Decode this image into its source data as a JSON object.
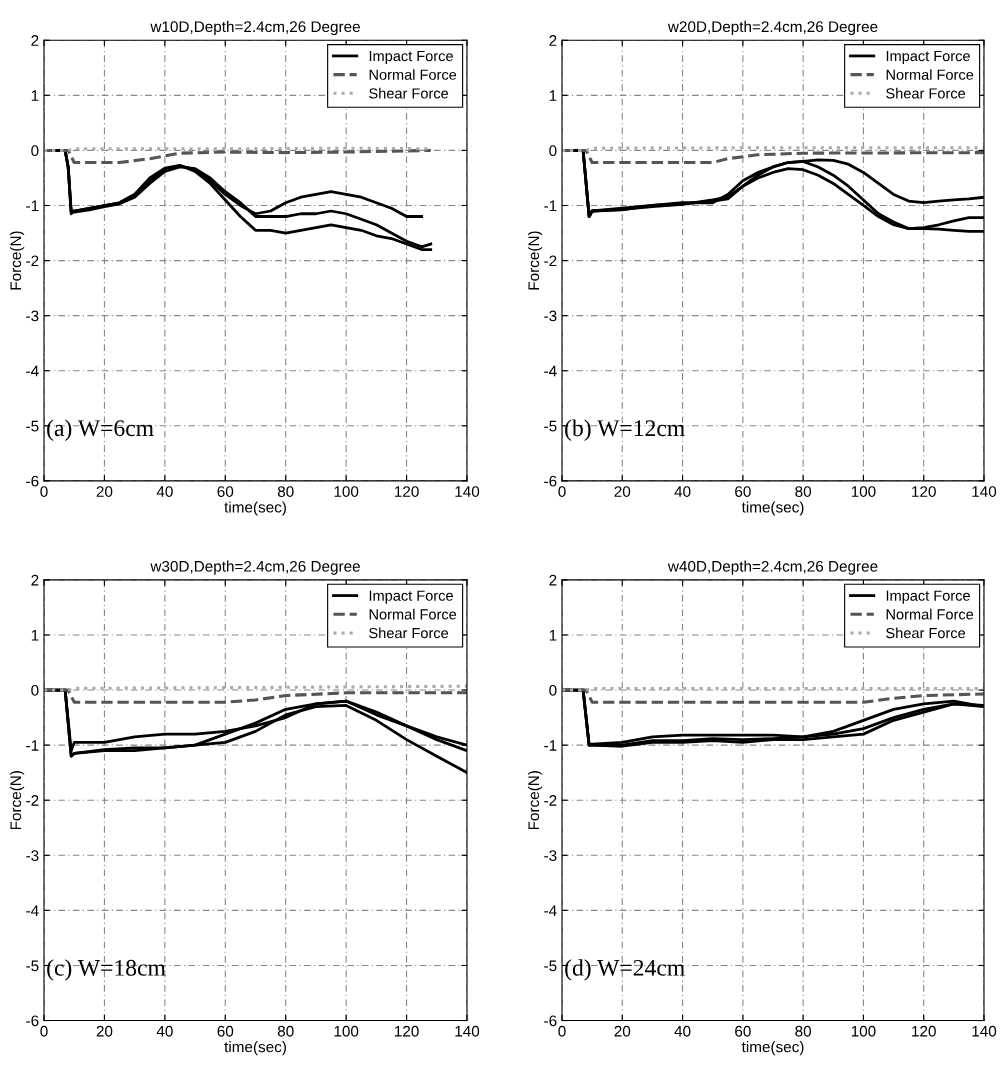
{
  "chart_data": [
    {
      "type": "line",
      "title": "w10D,Depth=2.4cm,26 Degree",
      "xlabel": "time(sec)",
      "ylabel": "Force(N)",
      "xlim": [
        0,
        140
      ],
      "ylim": [
        -6,
        2
      ],
      "xticks": [
        0,
        20,
        40,
        60,
        80,
        100,
        120,
        140
      ],
      "yticks": [
        -6,
        -5,
        -4,
        -3,
        -2,
        -1,
        0,
        1,
        2
      ],
      "grid": true,
      "legend": "top right",
      "annotations": [
        "(a) W=6cm"
      ],
      "series": [
        {
          "name": "Impact Force",
          "color": "#000000",
          "line_style": "solid",
          "x": [
            0,
            7,
            8,
            9,
            10,
            15,
            20,
            25,
            30,
            35,
            40,
            45,
            50,
            55,
            60,
            65,
            70,
            75,
            80,
            85,
            90,
            95,
            100,
            105,
            110,
            115,
            120,
            125
          ],
          "values": [
            0,
            0,
            -0.3,
            -1.1,
            -1.1,
            -1.05,
            -1.0,
            -0.95,
            -0.8,
            -0.55,
            -0.35,
            -0.28,
            -0.35,
            -0.55,
            -0.8,
            -1.0,
            -1.15,
            -1.1,
            -0.95,
            -0.85,
            -0.8,
            -0.75,
            -0.8,
            -0.85,
            -0.95,
            -1.05,
            -1.2,
            -1.2
          ]
        },
        {
          "color": "#000000",
          "line_style": "solid",
          "x": [
            0,
            7,
            8,
            9,
            10,
            15,
            20,
            25,
            30,
            35,
            40,
            45,
            50,
            55,
            60,
            65,
            70,
            75,
            80,
            85,
            90,
            95,
            100,
            105,
            110,
            115,
            120,
            125,
            128
          ],
          "values": [
            0,
            0,
            -0.3,
            -1.12,
            -1.12,
            -1.08,
            -1.02,
            -0.97,
            -0.85,
            -0.6,
            -0.38,
            -0.3,
            -0.33,
            -0.5,
            -0.75,
            -0.95,
            -1.2,
            -1.2,
            -1.2,
            -1.15,
            -1.15,
            -1.1,
            -1.15,
            -1.25,
            -1.35,
            -1.5,
            -1.65,
            -1.75,
            -1.7
          ]
        },
        {
          "color": "#000000",
          "line_style": "solid",
          "x": [
            0,
            7,
            8,
            9,
            10,
            15,
            20,
            25,
            30,
            35,
            40,
            45,
            50,
            55,
            60,
            65,
            70,
            75,
            80,
            85,
            90,
            95,
            100,
            105,
            110,
            115,
            120,
            125,
            128
          ],
          "values": [
            0,
            0,
            -0.3,
            -1.15,
            -1.1,
            -1.05,
            -1.0,
            -0.95,
            -0.8,
            -0.5,
            -0.32,
            -0.27,
            -0.38,
            -0.6,
            -0.9,
            -1.2,
            -1.45,
            -1.45,
            -1.5,
            -1.45,
            -1.4,
            -1.35,
            -1.4,
            -1.45,
            -1.55,
            -1.6,
            -1.7,
            -1.8,
            -1.8
          ]
        },
        {
          "name": "Normal Force",
          "color": "#555555",
          "line_style": "dashed",
          "x": [
            0,
            8,
            10,
            25,
            35,
            45,
            60,
            80,
            100,
            128
          ],
          "values": [
            0,
            0,
            -0.22,
            -0.22,
            -0.15,
            -0.05,
            -0.03,
            -0.04,
            -0.03,
            0
          ]
        },
        {
          "name": "Shear Force",
          "color": "#aaaaaa",
          "line_style": "dotted",
          "x": [
            0,
            8,
            10,
            60,
            100,
            128
          ],
          "values": [
            0,
            0,
            0.03,
            0.03,
            0.04,
            0.03
          ]
        }
      ]
    },
    {
      "type": "line",
      "title": "w20D,Depth=2.4cm,26 Degree",
      "xlabel": "time(sec)",
      "ylabel": "Force(N)",
      "xlim": [
        0,
        140
      ],
      "ylim": [
        -6,
        2
      ],
      "xticks": [
        0,
        20,
        40,
        60,
        80,
        100,
        120,
        140
      ],
      "yticks": [
        -6,
        -5,
        -4,
        -3,
        -2,
        -1,
        0,
        1,
        2
      ],
      "grid": true,
      "legend": "top right",
      "annotations": [
        "(b) W=12cm"
      ],
      "series": [
        {
          "name": "Impact Force",
          "color": "#000000",
          "line_style": "solid",
          "x": [
            0,
            7,
            9,
            10,
            20,
            30,
            40,
            50,
            55,
            60,
            65,
            70,
            75,
            80,
            85,
            90,
            95,
            100,
            105,
            110,
            115,
            120,
            125,
            130,
            135,
            140
          ],
          "values": [
            0,
            0,
            -1.2,
            -1.1,
            -1.07,
            -1.02,
            -0.98,
            -0.9,
            -0.85,
            -0.65,
            -0.45,
            -0.3,
            -0.22,
            -0.2,
            -0.17,
            -0.18,
            -0.25,
            -0.4,
            -0.6,
            -0.8,
            -0.92,
            -0.95,
            -0.92,
            -0.9,
            -0.88,
            -0.85
          ]
        },
        {
          "color": "#000000",
          "line_style": "solid",
          "x": [
            0,
            7,
            9,
            10,
            20,
            30,
            40,
            50,
            55,
            60,
            65,
            70,
            75,
            80,
            85,
            90,
            95,
            100,
            105,
            110,
            115,
            120,
            125,
            130,
            135,
            140
          ],
          "values": [
            0,
            0,
            -1.2,
            -1.1,
            -1.05,
            -1.0,
            -0.95,
            -0.95,
            -0.8,
            -0.55,
            -0.4,
            -0.3,
            -0.22,
            -0.2,
            -0.3,
            -0.45,
            -0.65,
            -0.9,
            -1.15,
            -1.3,
            -1.42,
            -1.4,
            -1.35,
            -1.28,
            -1.22,
            -1.22
          ]
        },
        {
          "color": "#000000",
          "line_style": "solid",
          "x": [
            0,
            7,
            9,
            10,
            20,
            30,
            40,
            50,
            55,
            60,
            65,
            70,
            75,
            80,
            85,
            90,
            95,
            100,
            105,
            110,
            115,
            120,
            125,
            130,
            135,
            140
          ],
          "values": [
            0,
            0,
            -1.2,
            -1.1,
            -1.08,
            -1.0,
            -0.97,
            -0.92,
            -0.88,
            -0.65,
            -0.5,
            -0.4,
            -0.33,
            -0.35,
            -0.45,
            -0.6,
            -0.8,
            -1.0,
            -1.2,
            -1.35,
            -1.42,
            -1.42,
            -1.43,
            -1.45,
            -1.47,
            -1.47
          ]
        },
        {
          "name": "Normal Force",
          "color": "#555555",
          "line_style": "dashed",
          "x": [
            0,
            8,
            10,
            50,
            55,
            65,
            80,
            140
          ],
          "values": [
            0,
            0,
            -0.22,
            -0.22,
            -0.15,
            -0.08,
            -0.05,
            -0.04
          ]
        },
        {
          "name": "Shear Force",
          "color": "#aaaaaa",
          "line_style": "dotted",
          "x": [
            0,
            8,
            10,
            80,
            140
          ],
          "values": [
            0,
            0,
            0.04,
            0.05,
            0.05
          ]
        }
      ]
    },
    {
      "type": "line",
      "title": "w30D,Depth=2.4cm,26 Degree",
      "xlabel": "time(sec)",
      "ylabel": "Force(N)",
      "xlim": [
        0,
        140
      ],
      "ylim": [
        -6,
        2
      ],
      "xticks": [
        0,
        20,
        40,
        60,
        80,
        100,
        120,
        140
      ],
      "yticks": [
        -6,
        -5,
        -4,
        -3,
        -2,
        -1,
        0,
        1,
        2
      ],
      "grid": true,
      "legend": "top right",
      "annotations": [
        "(c) W=18cm"
      ],
      "series": [
        {
          "name": "Impact Force",
          "color": "#000000",
          "line_style": "solid",
          "x": [
            0,
            7,
            9,
            10,
            20,
            30,
            40,
            50,
            60,
            70,
            80,
            90,
            100,
            110,
            120,
            130,
            140
          ],
          "values": [
            0,
            0,
            -1.1,
            -0.95,
            -0.95,
            -0.85,
            -0.8,
            -0.8,
            -0.75,
            -0.65,
            -0.5,
            -0.25,
            -0.2,
            -0.45,
            -0.65,
            -0.85,
            -1.0
          ]
        },
        {
          "color": "#000000",
          "line_style": "solid",
          "x": [
            0,
            7,
            9,
            10,
            20,
            30,
            40,
            50,
            60,
            70,
            80,
            90,
            100,
            110,
            120,
            130,
            140
          ],
          "values": [
            0,
            0,
            -1.2,
            -1.15,
            -1.1,
            -1.1,
            -1.05,
            -1.0,
            -0.8,
            -0.6,
            -0.35,
            -0.25,
            -0.2,
            -0.4,
            -0.65,
            -0.9,
            -1.1
          ]
        },
        {
          "color": "#000000",
          "line_style": "solid",
          "x": [
            0,
            7,
            9,
            10,
            20,
            30,
            40,
            50,
            60,
            70,
            75,
            80,
            90,
            100,
            110,
            120,
            130,
            140
          ],
          "values": [
            0,
            0,
            -1.2,
            -1.15,
            -1.08,
            -1.05,
            -1.05,
            -1.0,
            -0.95,
            -0.75,
            -0.6,
            -0.45,
            -0.3,
            -0.28,
            -0.55,
            -0.9,
            -1.2,
            -1.5
          ]
        },
        {
          "name": "Normal Force",
          "color": "#555555",
          "line_style": "dashed",
          "x": [
            0,
            8,
            10,
            60,
            70,
            80,
            100,
            140
          ],
          "values": [
            0,
            0,
            -0.22,
            -0.22,
            -0.18,
            -0.1,
            -0.05,
            -0.05
          ]
        },
        {
          "name": "Shear Force",
          "color": "#aaaaaa",
          "line_style": "dotted",
          "x": [
            0,
            8,
            10,
            80,
            140
          ],
          "values": [
            0,
            0,
            0.03,
            0.05,
            0.07
          ]
        }
      ]
    },
    {
      "type": "line",
      "title": "w40D,Depth=2.4cm,26 Degree",
      "xlabel": "time(sec)",
      "ylabel": "Force(N)",
      "xlim": [
        0,
        140
      ],
      "ylim": [
        -6,
        2
      ],
      "xticks": [
        0,
        20,
        40,
        60,
        80,
        100,
        120,
        140
      ],
      "yticks": [
        -6,
        -5,
        -4,
        -3,
        -2,
        -1,
        0,
        1,
        2
      ],
      "grid": true,
      "legend": "top right",
      "annotations": [
        "(d) W=24cm"
      ],
      "series": [
        {
          "name": "Impact Force",
          "color": "#000000",
          "line_style": "solid",
          "x": [
            0,
            7,
            9,
            10,
            20,
            30,
            40,
            50,
            60,
            70,
            80,
            90,
            100,
            110,
            120,
            130,
            140
          ],
          "values": [
            0,
            0,
            -1.0,
            -0.98,
            -0.95,
            -0.85,
            -0.82,
            -0.82,
            -0.82,
            -0.82,
            -0.85,
            -0.75,
            -0.55,
            -0.35,
            -0.25,
            -0.2,
            -0.3
          ]
        },
        {
          "color": "#000000",
          "line_style": "solid",
          "x": [
            0,
            7,
            9,
            10,
            20,
            30,
            40,
            50,
            60,
            70,
            80,
            90,
            100,
            110,
            120,
            130,
            140
          ],
          "values": [
            0,
            0,
            -1.0,
            -1.0,
            -1.0,
            -0.92,
            -0.92,
            -0.88,
            -0.9,
            -0.88,
            -0.85,
            -0.8,
            -0.7,
            -0.5,
            -0.35,
            -0.25,
            -0.28
          ]
        },
        {
          "color": "#000000",
          "line_style": "solid",
          "x": [
            0,
            7,
            9,
            10,
            20,
            30,
            40,
            50,
            60,
            70,
            80,
            90,
            100,
            110,
            120,
            130,
            140
          ],
          "values": [
            0,
            0,
            -1.0,
            -1.0,
            -1.02,
            -0.95,
            -0.95,
            -0.92,
            -0.95,
            -0.9,
            -0.9,
            -0.85,
            -0.8,
            -0.55,
            -0.4,
            -0.25,
            -0.3
          ]
        },
        {
          "name": "Normal Force",
          "color": "#555555",
          "line_style": "dashed",
          "x": [
            0,
            8,
            10,
            100,
            110,
            120,
            140
          ],
          "values": [
            0,
            0,
            -0.22,
            -0.22,
            -0.15,
            -0.1,
            -0.07
          ]
        },
        {
          "name": "Shear Force",
          "color": "#aaaaaa",
          "line_style": "dotted",
          "x": [
            0,
            8,
            10,
            140
          ],
          "values": [
            0,
            0,
            0.03,
            0.03
          ]
        }
      ]
    }
  ]
}
